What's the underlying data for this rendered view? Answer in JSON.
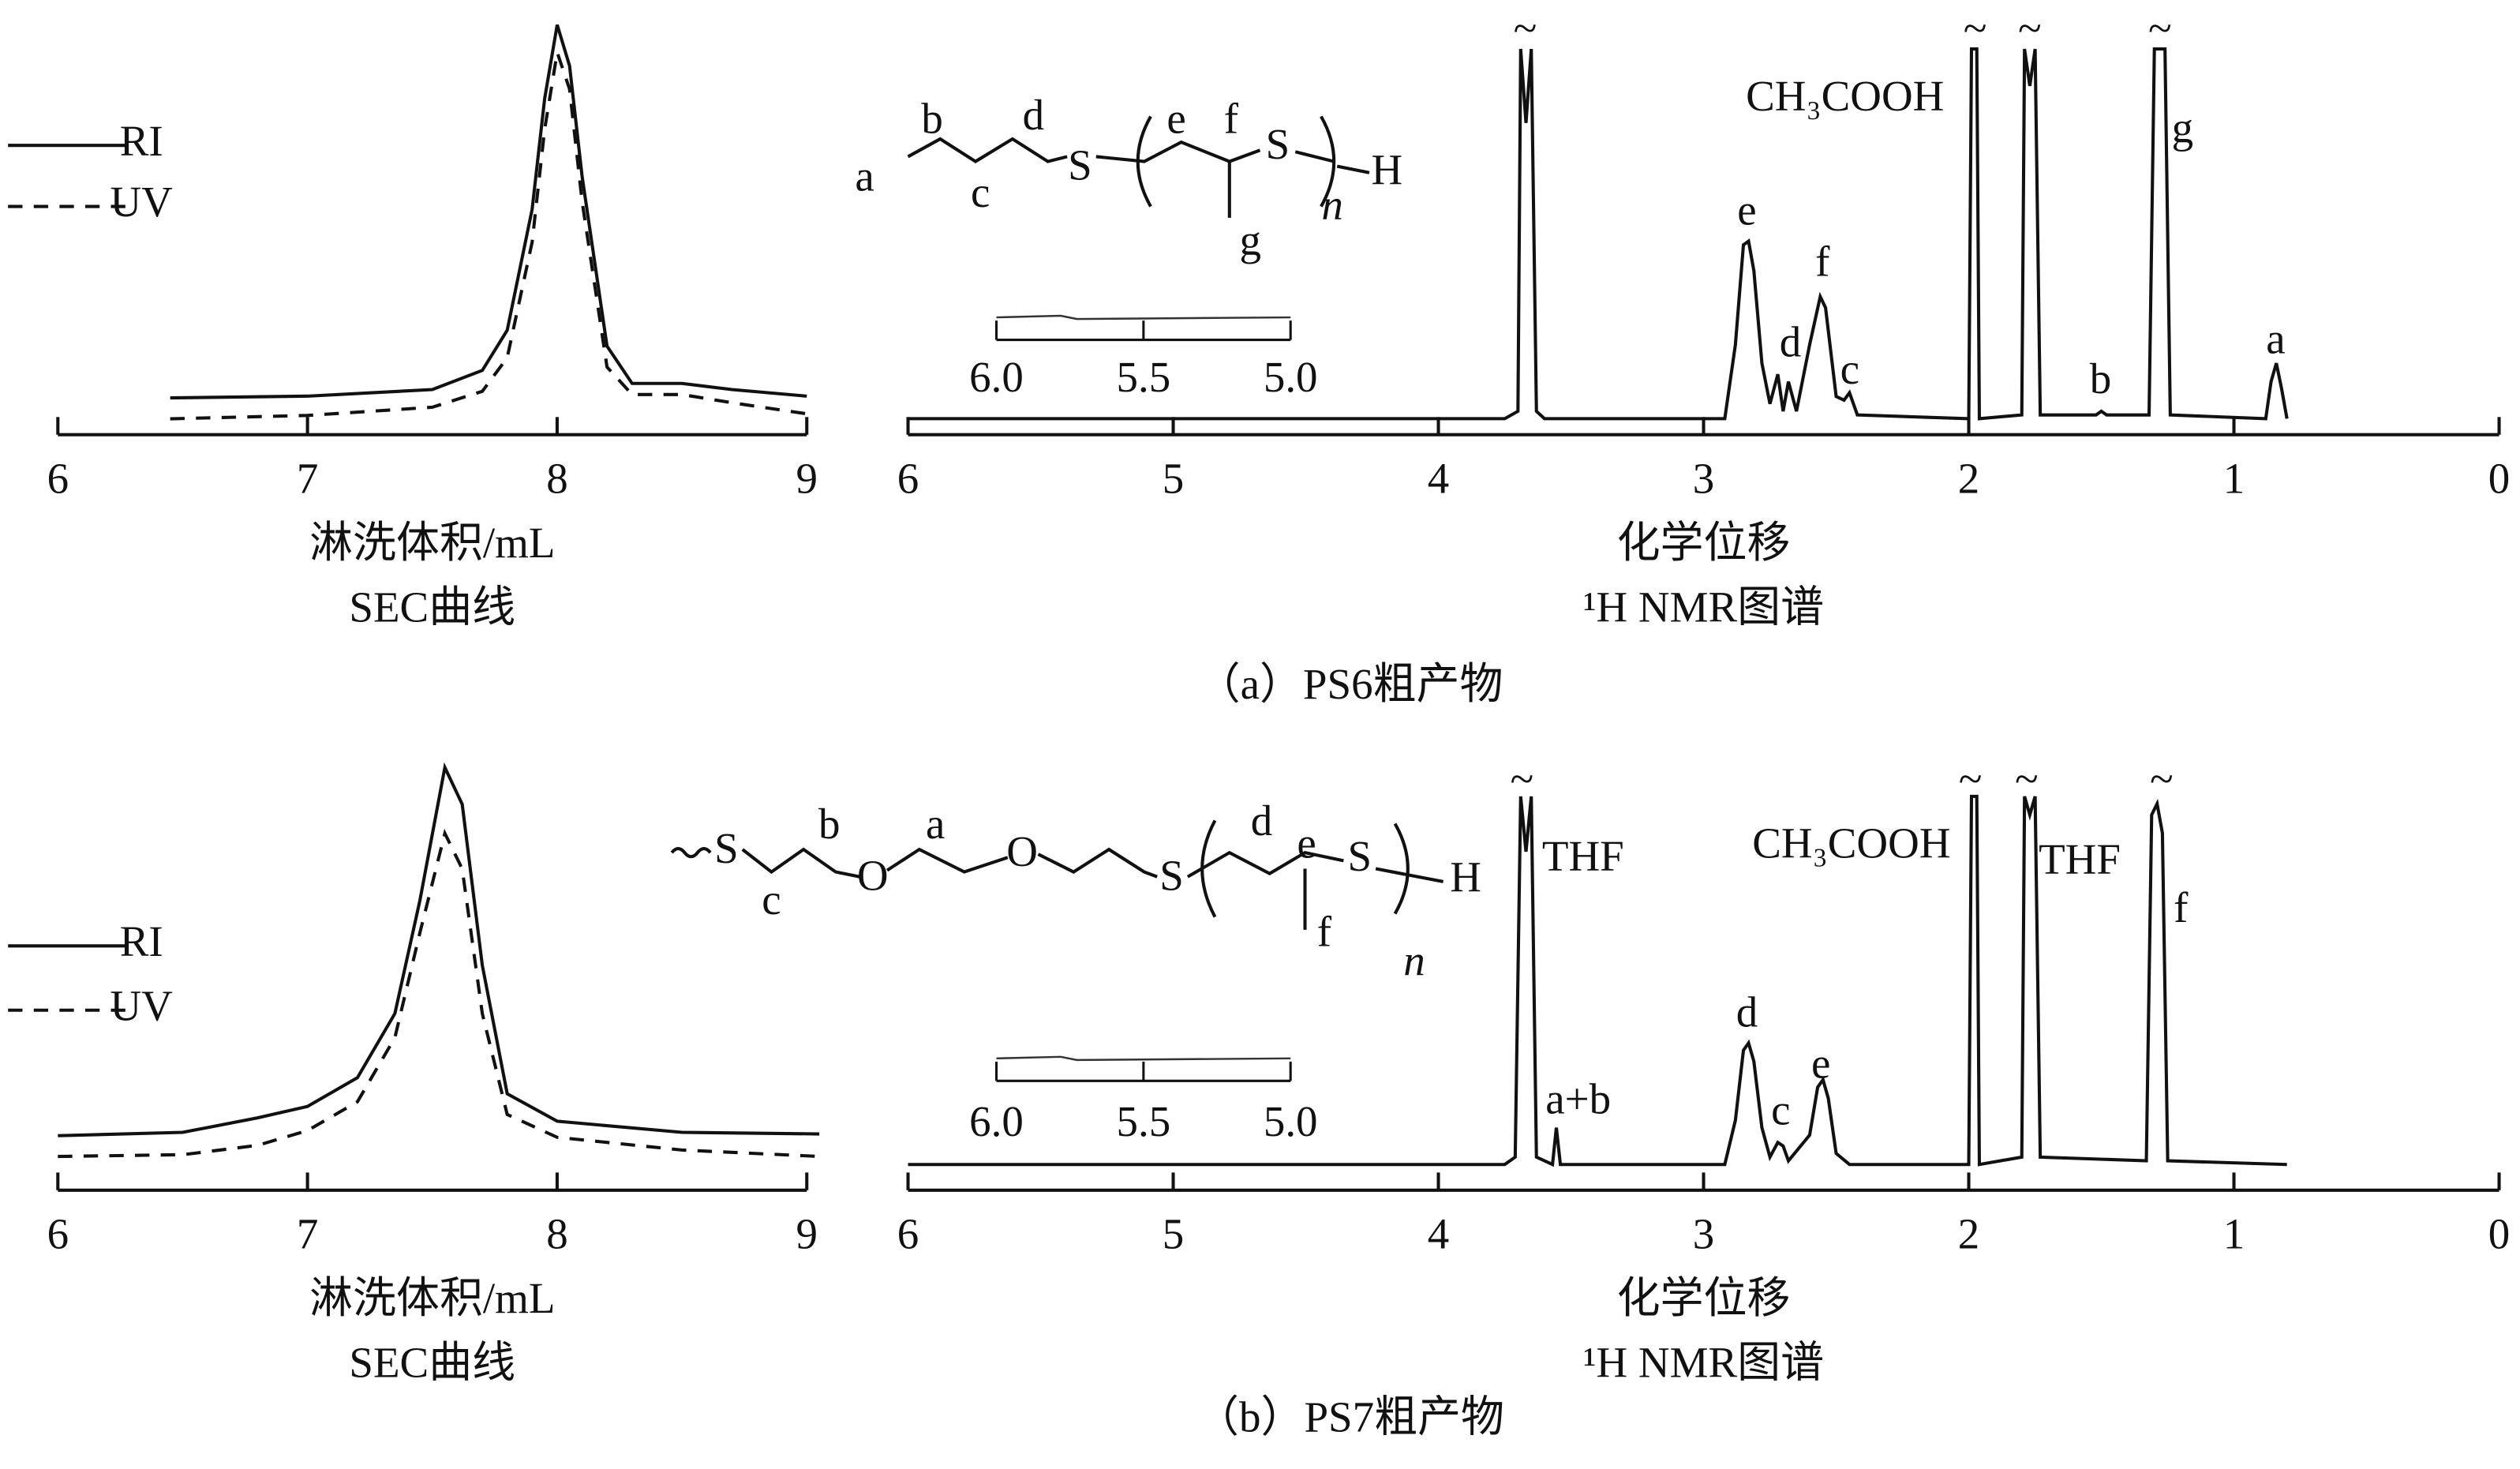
{
  "figure_captions": [
    "（a）PS6粗产物",
    "（b）PS7粗产物"
  ],
  "chart_data": [
    {
      "type": "line",
      "title": "SEC曲线",
      "x_label": "淋洗体积/mL",
      "xlim": [
        6,
        9
      ],
      "xticks": [
        6,
        7,
        8,
        9
      ],
      "ylim": [
        0,
        100
      ],
      "legend": "left",
      "x": [
        6.45,
        7.0,
        7.5,
        7.7,
        7.8,
        7.9,
        7.95,
        8.0,
        8.05,
        8.1,
        8.2,
        8.3,
        8.5,
        8.7,
        9.0
      ],
      "series": [
        {
          "name": "RI",
          "color": "#111111",
          "line_style": "solid",
          "values": [
            9,
            9.4,
            11,
            15.7,
            25.5,
            55,
            82,
            100,
            90,
            63,
            21.6,
            12.5,
            12.5,
            11,
            9.4
          ]
        },
        {
          "name": "UV",
          "color": "#111111",
          "line_style": "dashed",
          "values": [
            3.9,
            4.7,
            6.7,
            10.6,
            18.8,
            47,
            74.5,
            93.3,
            84.3,
            56.9,
            16.5,
            9.8,
            9.8,
            7.8,
            5.1
          ]
        }
      ]
    },
    {
      "type": "line",
      "title": "¹H NMR图谱",
      "x_label": "化学位移",
      "xlim": [
        6,
        0
      ],
      "xticks": [
        6,
        5,
        4,
        3,
        2,
        1,
        0
      ],
      "ylim": [
        0,
        100
      ],
      "color": "#111111",
      "x": [
        6.0,
        3.75,
        3.7,
        3.69,
        3.67,
        3.65,
        3.63,
        3.6,
        2.92,
        2.88,
        2.85,
        2.83,
        2.81,
        2.78,
        2.75,
        2.72,
        2.7,
        2.68,
        2.65,
        2.6,
        2.56,
        2.54,
        2.5,
        2.47,
        2.45,
        2.42,
        2.0,
        1.99,
        1.97,
        1.96,
        1.8,
        1.79,
        1.77,
        1.75,
        1.73,
        1.52,
        1.5,
        1.48,
        1.32,
        1.3,
        1.28,
        1.26,
        1.24,
        0.88,
        0.86,
        0.84,
        0.82,
        0.8
      ],
      "values": [
        0,
        0,
        2,
        100,
        80,
        100,
        2,
        0,
        0,
        20,
        47,
        48,
        40,
        15,
        4,
        12,
        2,
        10,
        2,
        20,
        33,
        30,
        6,
        5,
        7,
        1,
        0,
        100,
        100,
        0,
        1,
        100,
        90,
        100,
        1,
        1,
        2,
        1,
        1,
        100,
        100,
        100,
        1,
        0,
        10,
        15,
        8,
        0
      ],
      "annotations": [
        "~",
        "~",
        "~",
        "~",
        "CH₃COOH",
        "g",
        "e",
        "f",
        "d",
        "c",
        "b",
        "a"
      ],
      "structure_labels": [
        "a",
        "b",
        "c",
        "d",
        "S",
        "e",
        "f",
        "g",
        "S",
        "n",
        "H"
      ],
      "inset": {
        "xlim": [
          6,
          5
        ],
        "xticks": [
          {
            "value": 6,
            "label": "6.0"
          },
          {
            "value": 5.5,
            "label": "5.5"
          },
          {
            "value": 5,
            "label": "5.0"
          }
        ]
      }
    },
    {
      "type": "line",
      "title": "SEC曲线",
      "x_label": "淋洗体积/mL",
      "xlim": [
        6,
        9
      ],
      "xticks": [
        6,
        7,
        8,
        9
      ],
      "ylim": [
        0,
        100
      ],
      "legend": "left",
      "x": [
        6.0,
        6.5,
        6.8,
        7.0,
        7.2,
        7.35,
        7.45,
        7.55,
        7.62,
        7.7,
        7.8,
        8.0,
        8.5,
        9.05
      ],
      "series": [
        {
          "name": "RI",
          "color": "#111111",
          "line_style": "solid",
          "values": [
            12.9,
            13.7,
            17.1,
            19.8,
            26.6,
            41.8,
            68.4,
            100,
            91.3,
            53.2,
            22.8,
            16.3,
            13.7,
            13.3
          ]
        },
        {
          "name": "UV",
          "color": "#111111",
          "line_style": "dashed",
          "values": [
            8,
            8.4,
            10.6,
            14.1,
            20.9,
            36.1,
            60.8,
            84.4,
            76,
            41.8,
            17.9,
            12.5,
            9.5,
            8
          ]
        }
      ]
    },
    {
      "type": "line",
      "title": "¹H NMR图谱",
      "x_label": "化学位移",
      "xlim": [
        6,
        0
      ],
      "xticks": [
        6,
        5,
        4,
        3,
        2,
        1,
        0
      ],
      "ylim": [
        0,
        100
      ],
      "color": "#111111",
      "x": [
        6.0,
        3.75,
        3.71,
        3.69,
        3.67,
        3.65,
        3.63,
        3.57,
        3.555,
        3.54,
        2.92,
        2.88,
        2.85,
        2.83,
        2.81,
        2.78,
        2.75,
        2.72,
        2.7,
        2.68,
        2.6,
        2.57,
        2.55,
        2.53,
        2.5,
        2.45,
        2.0,
        1.99,
        1.97,
        1.96,
        1.8,
        1.79,
        1.77,
        1.75,
        1.73,
        1.33,
        1.31,
        1.29,
        1.27,
        1.25,
        0.8
      ],
      "values": [
        0,
        0,
        2,
        100,
        85,
        100,
        2,
        0,
        10,
        0,
        0,
        12,
        31,
        33,
        28,
        10,
        2,
        6,
        5,
        1,
        8,
        21,
        23,
        18,
        3,
        0,
        0,
        100,
        100,
        0,
        2,
        100,
        95,
        100,
        2,
        1,
        95,
        98,
        90,
        1,
        0
      ],
      "annotations": [
        "~",
        "~",
        "~",
        "~",
        "THF",
        "CH₃COOH",
        "THF",
        "f",
        "a+b",
        "d",
        "c",
        "e"
      ],
      "structure_labels": [
        "S",
        "c",
        "b",
        "O",
        "a",
        "O",
        "S",
        "d",
        "e",
        "S",
        "f",
        "n",
        "H"
      ],
      "inset": {
        "xlim": [
          6,
          5
        ],
        "xticks": [
          {
            "value": 6,
            "label": "6.0"
          },
          {
            "value": 5.5,
            "label": "5.5"
          },
          {
            "value": 5,
            "label": "5.0"
          }
        ]
      }
    }
  ]
}
